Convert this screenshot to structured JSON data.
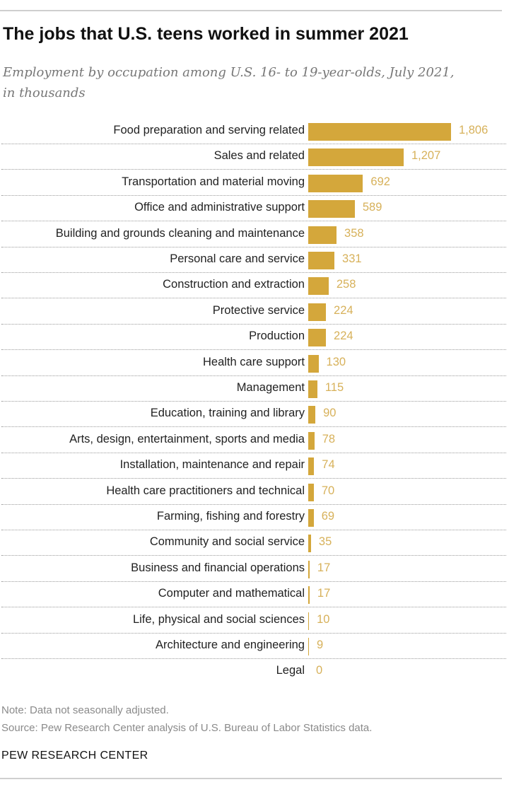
{
  "chart_data": {
    "type": "bar",
    "orientation": "horizontal",
    "title": "The jobs that U.S. teens worked in summer 2021",
    "subtitle": "Employment by occupation among U.S. 16- to 19-year-olds, July 2021, in thousands",
    "categories": [
      "Food preparation and serving related",
      "Sales and related",
      "Transportation and material moving",
      "Office and administrative support",
      "Building and grounds cleaning and maintenance",
      "Personal care and service",
      "Construction and extraction",
      "Protective service",
      "Production",
      "Health care support",
      "Management",
      "Education, training and library",
      "Arts, design, entertainment, sports and media",
      "Installation, maintenance and repair",
      "Health care practitioners and technical",
      "Farming, fishing and forestry",
      "Community and social service",
      "Business and financial operations",
      "Computer and mathematical",
      "Life, physical and social sciences",
      "Architecture and engineering",
      "Legal"
    ],
    "values": [
      1806,
      1207,
      692,
      589,
      358,
      331,
      258,
      224,
      224,
      130,
      115,
      90,
      78,
      74,
      70,
      69,
      35,
      17,
      17,
      10,
      9,
      0
    ],
    "value_labels": [
      "1,806",
      "1,207",
      "692",
      "589",
      "358",
      "331",
      "258",
      "224",
      "224",
      "130",
      "115",
      "90",
      "78",
      "74",
      "70",
      "69",
      "35",
      "17",
      "17",
      "10",
      "9",
      "0"
    ],
    "xlim": [
      0,
      1806
    ],
    "grid": false,
    "colors": {
      "bar": "#d4a73b",
      "value_label": "#d7b15a"
    }
  },
  "footer": {
    "note": "Note: Data not seasonally adjusted.",
    "source": "Source: Pew Research Center analysis of U.S. Bureau of Labor Statistics data.",
    "brand": "PEW RESEARCH CENTER"
  }
}
